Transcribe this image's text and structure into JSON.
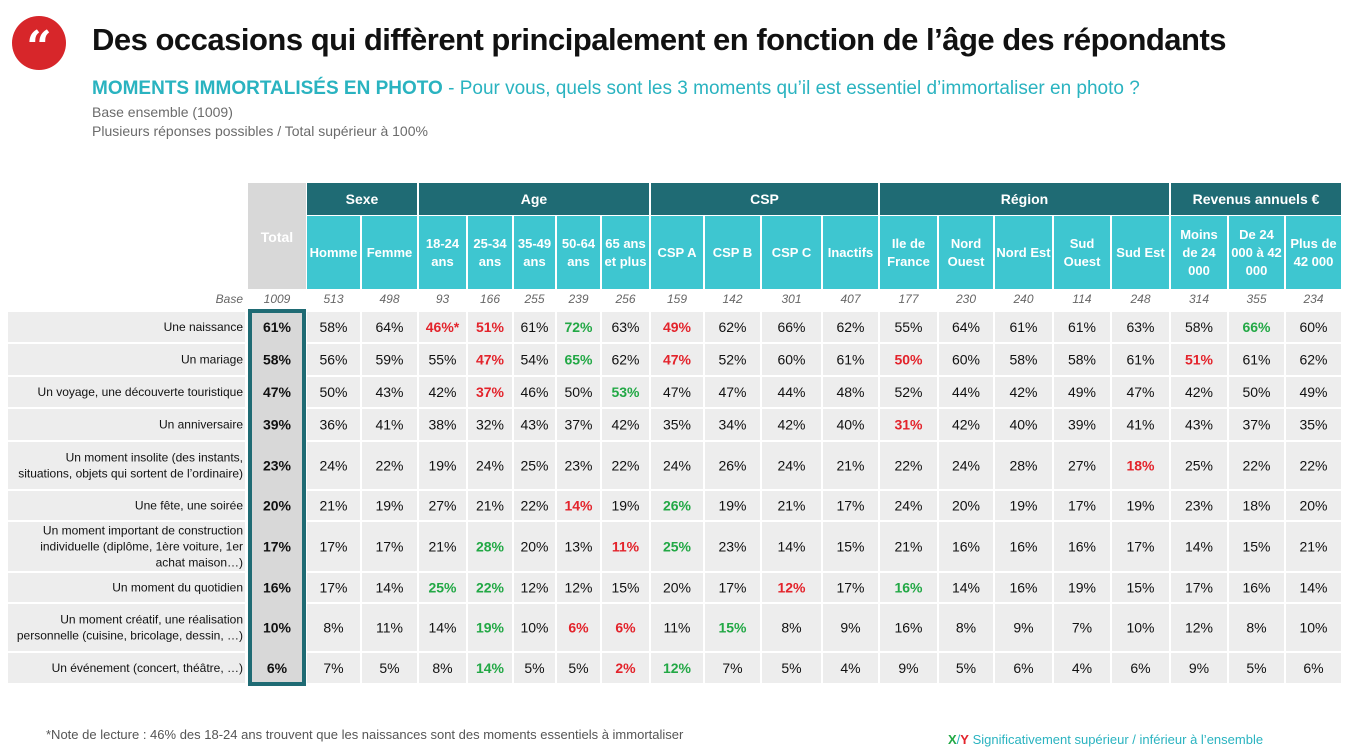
{
  "header": {
    "quote_glyph": "“",
    "title": "Des occasions qui diffèrent principalement en fonction de l’âge des répondants",
    "subtitle_strong": "MOMENTS IMMORTALISÉS EN PHOTO",
    "subtitle_sep": " - ",
    "subtitle_question": " Pour vous, quels sont les 3 moments qu’il est essentiel d’immortaliser en photo ?",
    "base_line": "Base ensemble (1009)",
    "multi_line": "Plusieurs réponses possibles / Total supérieur à 100%"
  },
  "footer": {
    "note": "*Note de lecture : 46% des 18-24 ans trouvent que les naissances sont des moments essentiels à immortaliser",
    "legend_x": "X",
    "legend_slash": "/",
    "legend_y": "Y",
    "legend_text": " Significativement supérieur / inférieur à l’ensemble"
  },
  "chart_data": {
    "type": "table",
    "base_label": "Base",
    "total_label": "Total",
    "groups": [
      {
        "name": "Sexe",
        "span": 2
      },
      {
        "name": "Age",
        "span": 5
      },
      {
        "name": "CSP",
        "span": 4
      },
      {
        "name": "Région",
        "span": 5
      },
      {
        "name": "Revenus annuels €",
        "span": 3
      }
    ],
    "columns": [
      {
        "lines": [
          "Total"
        ],
        "base": "1009"
      },
      {
        "lines": [
          "Homme"
        ],
        "base": "513"
      },
      {
        "lines": [
          "Femme"
        ],
        "base": "498"
      },
      {
        "lines": [
          "18-24",
          "ans"
        ],
        "base": "93"
      },
      {
        "lines": [
          "25-34",
          "ans"
        ],
        "base": "166"
      },
      {
        "lines": [
          "35-49",
          "ans"
        ],
        "base": "255"
      },
      {
        "lines": [
          "50-64",
          "ans"
        ],
        "base": "239"
      },
      {
        "lines": [
          "65 ans",
          "et plus"
        ],
        "base": "256"
      },
      {
        "lines": [
          "CSP A"
        ],
        "base": "159"
      },
      {
        "lines": [
          "CSP B"
        ],
        "base": "142"
      },
      {
        "lines": [
          "CSP C"
        ],
        "base": "301"
      },
      {
        "lines": [
          "Inactifs"
        ],
        "base": "407"
      },
      {
        "lines": [
          "Ile de",
          "France"
        ],
        "base": "177"
      },
      {
        "lines": [
          "Nord",
          "Ouest"
        ],
        "base": "230"
      },
      {
        "lines": [
          "Nord Est"
        ],
        "base": "240"
      },
      {
        "lines": [
          "Sud",
          "Ouest"
        ],
        "base": "114"
      },
      {
        "lines": [
          "Sud Est"
        ],
        "base": "248"
      },
      {
        "lines": [
          "Moins",
          "de 24",
          "000"
        ],
        "base": "314"
      },
      {
        "lines": [
          "De 24",
          "000 à 42",
          "000"
        ],
        "base": "355"
      },
      {
        "lines": [
          "Plus de",
          "42 000"
        ],
        "base": "234"
      }
    ],
    "rows": [
      {
        "label": [
          "Une naissance"
        ],
        "values": [
          "61%",
          "58%",
          "64%",
          "46%*",
          "51%",
          "61%",
          "72%",
          "63%",
          "49%",
          "62%",
          "66%",
          "62%",
          "55%",
          "64%",
          "61%",
          "61%",
          "63%",
          "58%",
          "66%",
          "60%"
        ],
        "sig": [
          "",
          "",
          "",
          "r",
          "r",
          "",
          "g",
          "",
          "r",
          "",
          "",
          "",
          "",
          "",
          "",
          "",
          "",
          "",
          "g",
          ""
        ]
      },
      {
        "label": [
          "Un mariage"
        ],
        "values": [
          "58%",
          "56%",
          "59%",
          "55%",
          "47%",
          "54%",
          "65%",
          "62%",
          "47%",
          "52%",
          "60%",
          "61%",
          "50%",
          "60%",
          "58%",
          "58%",
          "61%",
          "51%",
          "61%",
          "62%"
        ],
        "sig": [
          "",
          "",
          "",
          "",
          "r",
          "",
          "g",
          "",
          "r",
          "",
          "",
          "",
          "r",
          "",
          "",
          "",
          "",
          "r",
          "",
          ""
        ]
      },
      {
        "label": [
          "Un voyage, une découverte touristique"
        ],
        "values": [
          "47%",
          "50%",
          "43%",
          "42%",
          "37%",
          "46%",
          "50%",
          "53%",
          "47%",
          "47%",
          "44%",
          "48%",
          "52%",
          "44%",
          "42%",
          "49%",
          "47%",
          "42%",
          "50%",
          "49%"
        ],
        "sig": [
          "",
          "",
          "",
          "",
          "r",
          "",
          "",
          "g",
          "",
          "",
          "",
          "",
          "",
          "",
          "",
          "",
          "",
          "",
          "",
          ""
        ]
      },
      {
        "label": [
          "Un anniversaire"
        ],
        "values": [
          "39%",
          "36%",
          "41%",
          "38%",
          "32%",
          "43%",
          "37%",
          "42%",
          "35%",
          "34%",
          "42%",
          "40%",
          "31%",
          "42%",
          "40%",
          "39%",
          "41%",
          "43%",
          "37%",
          "35%"
        ],
        "sig": [
          "",
          "",
          "",
          "",
          "",
          "",
          "",
          "",
          "",
          "",
          "",
          "",
          "r",
          "",
          "",
          "",
          "",
          "",
          "",
          ""
        ]
      },
      {
        "label": [
          "Un moment insolite (des instants,",
          "situations, objets qui sortent de l’ordinaire)"
        ],
        "values": [
          "23%",
          "24%",
          "22%",
          "19%",
          "24%",
          "25%",
          "23%",
          "22%",
          "24%",
          "26%",
          "24%",
          "21%",
          "22%",
          "24%",
          "28%",
          "27%",
          "18%",
          "25%",
          "22%",
          "22%"
        ],
        "sig": [
          "",
          "",
          "",
          "",
          "",
          "",
          "",
          "",
          "",
          "",
          "",
          "",
          "",
          "",
          "",
          "",
          "r",
          "",
          "",
          ""
        ]
      },
      {
        "label": [
          "Une fête, une soirée"
        ],
        "values": [
          "20%",
          "21%",
          "19%",
          "27%",
          "21%",
          "22%",
          "14%",
          "19%",
          "26%",
          "19%",
          "21%",
          "17%",
          "24%",
          "20%",
          "19%",
          "17%",
          "19%",
          "23%",
          "18%",
          "20%"
        ],
        "sig": [
          "",
          "",
          "",
          "",
          "",
          "",
          "r",
          "",
          "g",
          "",
          "",
          "",
          "",
          "",
          "",
          "",
          "",
          "",
          "",
          ""
        ]
      },
      {
        "label": [
          "Un moment important de construction",
          "individuelle (diplôme, 1ère voiture, 1er",
          "achat maison…)"
        ],
        "values": [
          "17%",
          "17%",
          "17%",
          "21%",
          "28%",
          "20%",
          "13%",
          "11%",
          "25%",
          "23%",
          "14%",
          "15%",
          "21%",
          "16%",
          "16%",
          "16%",
          "17%",
          "14%",
          "15%",
          "21%"
        ],
        "sig": [
          "",
          "",
          "",
          "",
          "g",
          "",
          "",
          "r",
          "g",
          "",
          "",
          "",
          "",
          "",
          "",
          "",
          "",
          "",
          "",
          ""
        ]
      },
      {
        "label": [
          "Un moment du quotidien"
        ],
        "values": [
          "16%",
          "17%",
          "14%",
          "25%",
          "22%",
          "12%",
          "12%",
          "15%",
          "20%",
          "17%",
          "12%",
          "17%",
          "16%",
          "14%",
          "16%",
          "19%",
          "15%",
          "17%",
          "16%",
          "14%"
        ],
        "sig": [
          "",
          "",
          "",
          "g",
          "g",
          "",
          "",
          "",
          "",
          "",
          "r",
          "",
          "g",
          "",
          "",
          "",
          "",
          "",
          "",
          ""
        ]
      },
      {
        "label": [
          "Un moment créatif, une réalisation",
          "personnelle (cuisine, bricolage, dessin, …)"
        ],
        "values": [
          "10%",
          "8%",
          "11%",
          "14%",
          "19%",
          "10%",
          "6%",
          "6%",
          "11%",
          "15%",
          "8%",
          "9%",
          "16%",
          "8%",
          "9%",
          "7%",
          "10%",
          "12%",
          "8%",
          "10%"
        ],
        "sig": [
          "",
          "",
          "",
          "",
          "g",
          "",
          "r",
          "r",
          "",
          "g",
          "",
          "",
          "",
          "",
          "",
          "",
          "",
          "",
          "",
          ""
        ]
      },
      {
        "label": [
          "Un événement (concert, théâtre, …)"
        ],
        "values": [
          "6%",
          "7%",
          "5%",
          "8%",
          "14%",
          "5%",
          "5%",
          "2%",
          "12%",
          "7%",
          "5%",
          "4%",
          "9%",
          "5%",
          "6%",
          "4%",
          "6%",
          "9%",
          "5%",
          "6%"
        ],
        "sig": [
          "",
          "",
          "",
          "",
          "g",
          "",
          "",
          "r",
          "g",
          "",
          "",
          "",
          "",
          "",
          "",
          "",
          "",
          "",
          "",
          ""
        ]
      }
    ],
    "colors": {
      "group_header": "#1f6b74",
      "sub_header": "#3ec6d0",
      "total_fill": "#d8d8d8",
      "total_border": "#1f6b74",
      "row_fill": "#ededed",
      "sig_up": "#22a845",
      "sig_down": "#e3232b"
    }
  }
}
